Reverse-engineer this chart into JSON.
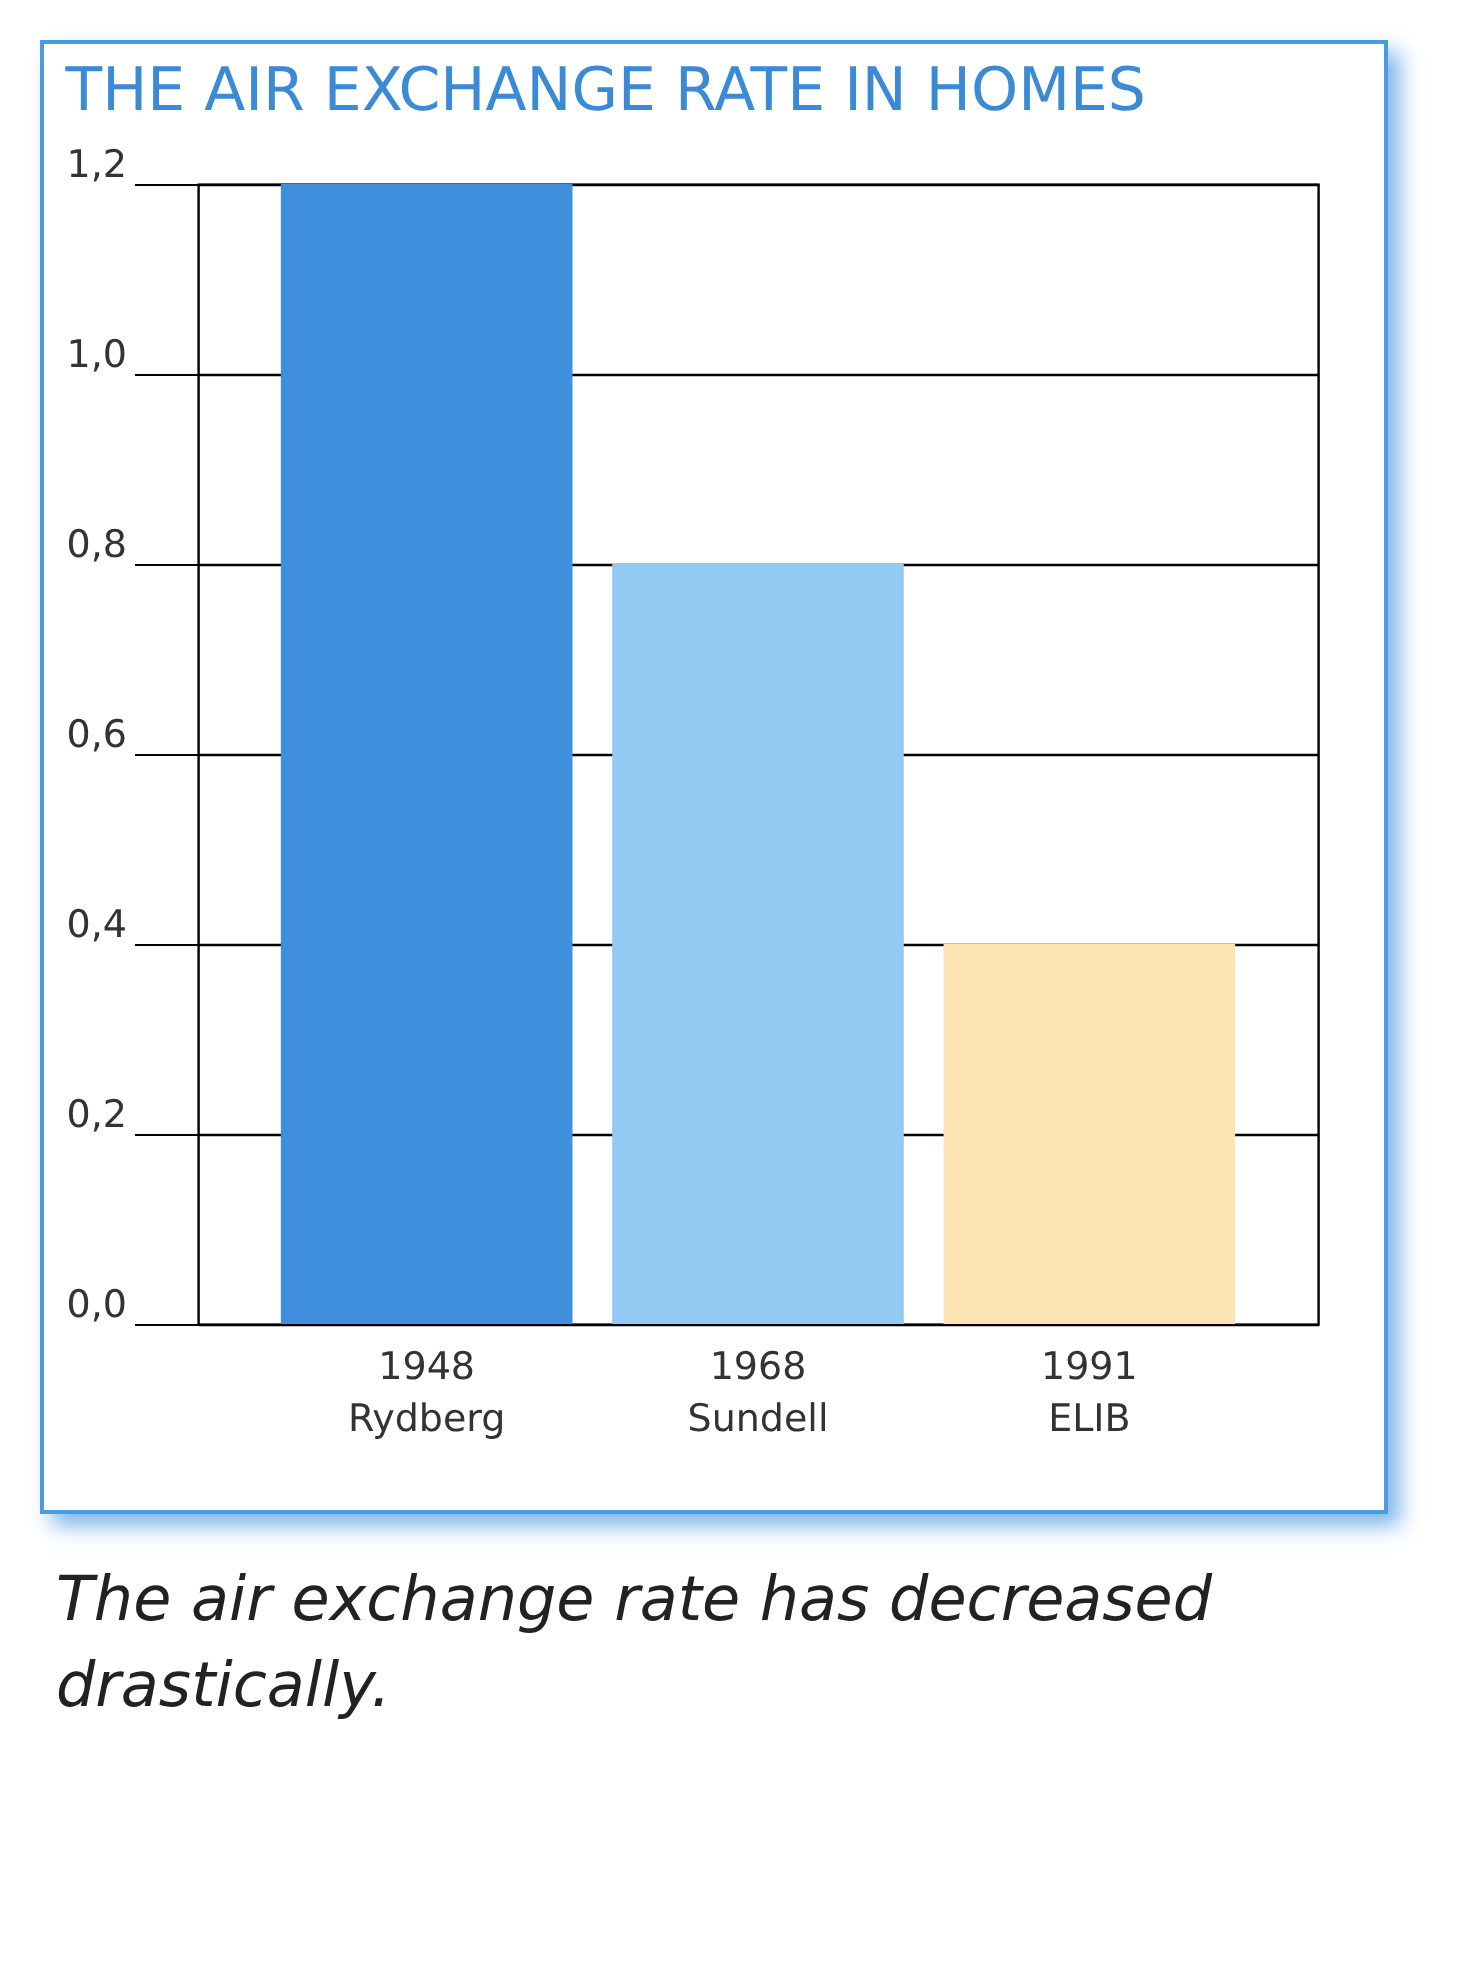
{
  "chart_data": {
    "type": "bar",
    "title": "THE AIR EXCHANGE RATE IN HOMES",
    "categories": [
      "1948\nRydberg",
      "1968\nSundell",
      "1991\nELIB"
    ],
    "values": [
      1.2,
      0.8,
      0.4
    ],
    "colors": [
      "#3f8fdc",
      "#92caf3",
      "#fde5b3"
    ],
    "ylim": [
      0,
      1.2
    ],
    "yticks": [
      {
        "value": 0,
        "label": "0,0"
      },
      {
        "value": 0.2,
        "label": "0,2"
      },
      {
        "value": 0.4,
        "label": "0,4"
      },
      {
        "value": 0.6,
        "label": "0,6"
      },
      {
        "value": 0.8,
        "label": "0,8"
      },
      {
        "value": 1.0,
        "label": "1,0"
      },
      {
        "value": 1.2,
        "label": "1,2"
      }
    ],
    "grid": "y",
    "annotations": [
      "The air exchange rate has decreased drastically."
    ]
  }
}
